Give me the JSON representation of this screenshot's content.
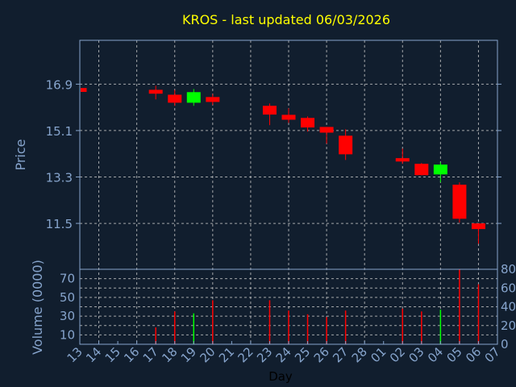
{
  "chart_data": {
    "type": "candlestick",
    "title": "KROS - last updated 06/03/2026",
    "ylabel": "Price",
    "volume_ylabel": "Volume (0000)",
    "xlabel": "Day",
    "x_ticks": [
      "13",
      "14",
      "15",
      "16",
      "17",
      "18",
      "19",
      "20",
      "21",
      "22",
      "23",
      "24",
      "25",
      "26",
      "27",
      "28",
      "01",
      "02",
      "03",
      "04",
      "05",
      "06",
      "07"
    ],
    "y_ticks": [
      16.9,
      15.1,
      13.3,
      11.5
    ],
    "ylim": [
      9.72,
      18.6
    ],
    "volume_ticks": [
      0,
      10,
      20,
      30,
      40,
      50,
      60,
      70,
      80
    ],
    "volume_ylim": [
      0,
      80
    ],
    "grid": true,
    "colors": {
      "background": "#111e2e",
      "title": "#ffff00",
      "axis": "#86a4cc",
      "up": "#00ff00",
      "down": "#ff0000",
      "grid": "#c8c8c8",
      "xlabel": "#000000"
    },
    "candles": [
      {
        "day": "13",
        "open": 16.75,
        "high": 16.75,
        "low": 16.6,
        "close": 16.6,
        "volume": null
      },
      {
        "day": "17",
        "open": 16.68,
        "high": 16.84,
        "low": 16.31,
        "close": 16.53,
        "volume": 18
      },
      {
        "day": "18",
        "open": 16.49,
        "high": 16.68,
        "low": 16.06,
        "close": 16.18,
        "volume": 35
      },
      {
        "day": "19",
        "open": 16.18,
        "high": 16.71,
        "low": 16.06,
        "close": 16.59,
        "volume": 33
      },
      {
        "day": "20",
        "open": 16.4,
        "high": 16.52,
        "low": 16.09,
        "close": 16.21,
        "volume": 47
      },
      {
        "day": "23",
        "open": 16.06,
        "high": 16.15,
        "low": 15.31,
        "close": 15.72,
        "volume": 47
      },
      {
        "day": "24",
        "open": 15.71,
        "high": 15.96,
        "low": 15.4,
        "close": 15.52,
        "volume": 36
      },
      {
        "day": "25",
        "open": 15.59,
        "high": 15.65,
        "low": 15.06,
        "close": 15.22,
        "volume": 32
      },
      {
        "day": "26",
        "open": 15.24,
        "high": 15.24,
        "low": 14.59,
        "close": 15.02,
        "volume": 29
      },
      {
        "day": "27",
        "open": 14.9,
        "high": 15.15,
        "low": 13.96,
        "close": 14.18,
        "volume": 36
      },
      {
        "day": "02",
        "open": 14.03,
        "high": 14.4,
        "low": 13.81,
        "close": 13.9,
        "volume": 38
      },
      {
        "day": "03",
        "open": 13.81,
        "high": 13.84,
        "low": 13.37,
        "close": 13.37,
        "volume": 35
      },
      {
        "day": "04",
        "open": 13.4,
        "high": 13.87,
        "low": 13.09,
        "close": 13.78,
        "volume": 37
      },
      {
        "day": "05",
        "open": 13.0,
        "high": 13.09,
        "low": 11.53,
        "close": 11.68,
        "volume": 80
      },
      {
        "day": "06",
        "open": 11.5,
        "high": 11.5,
        "low": 10.71,
        "close": 11.28,
        "volume": 64
      }
    ]
  }
}
